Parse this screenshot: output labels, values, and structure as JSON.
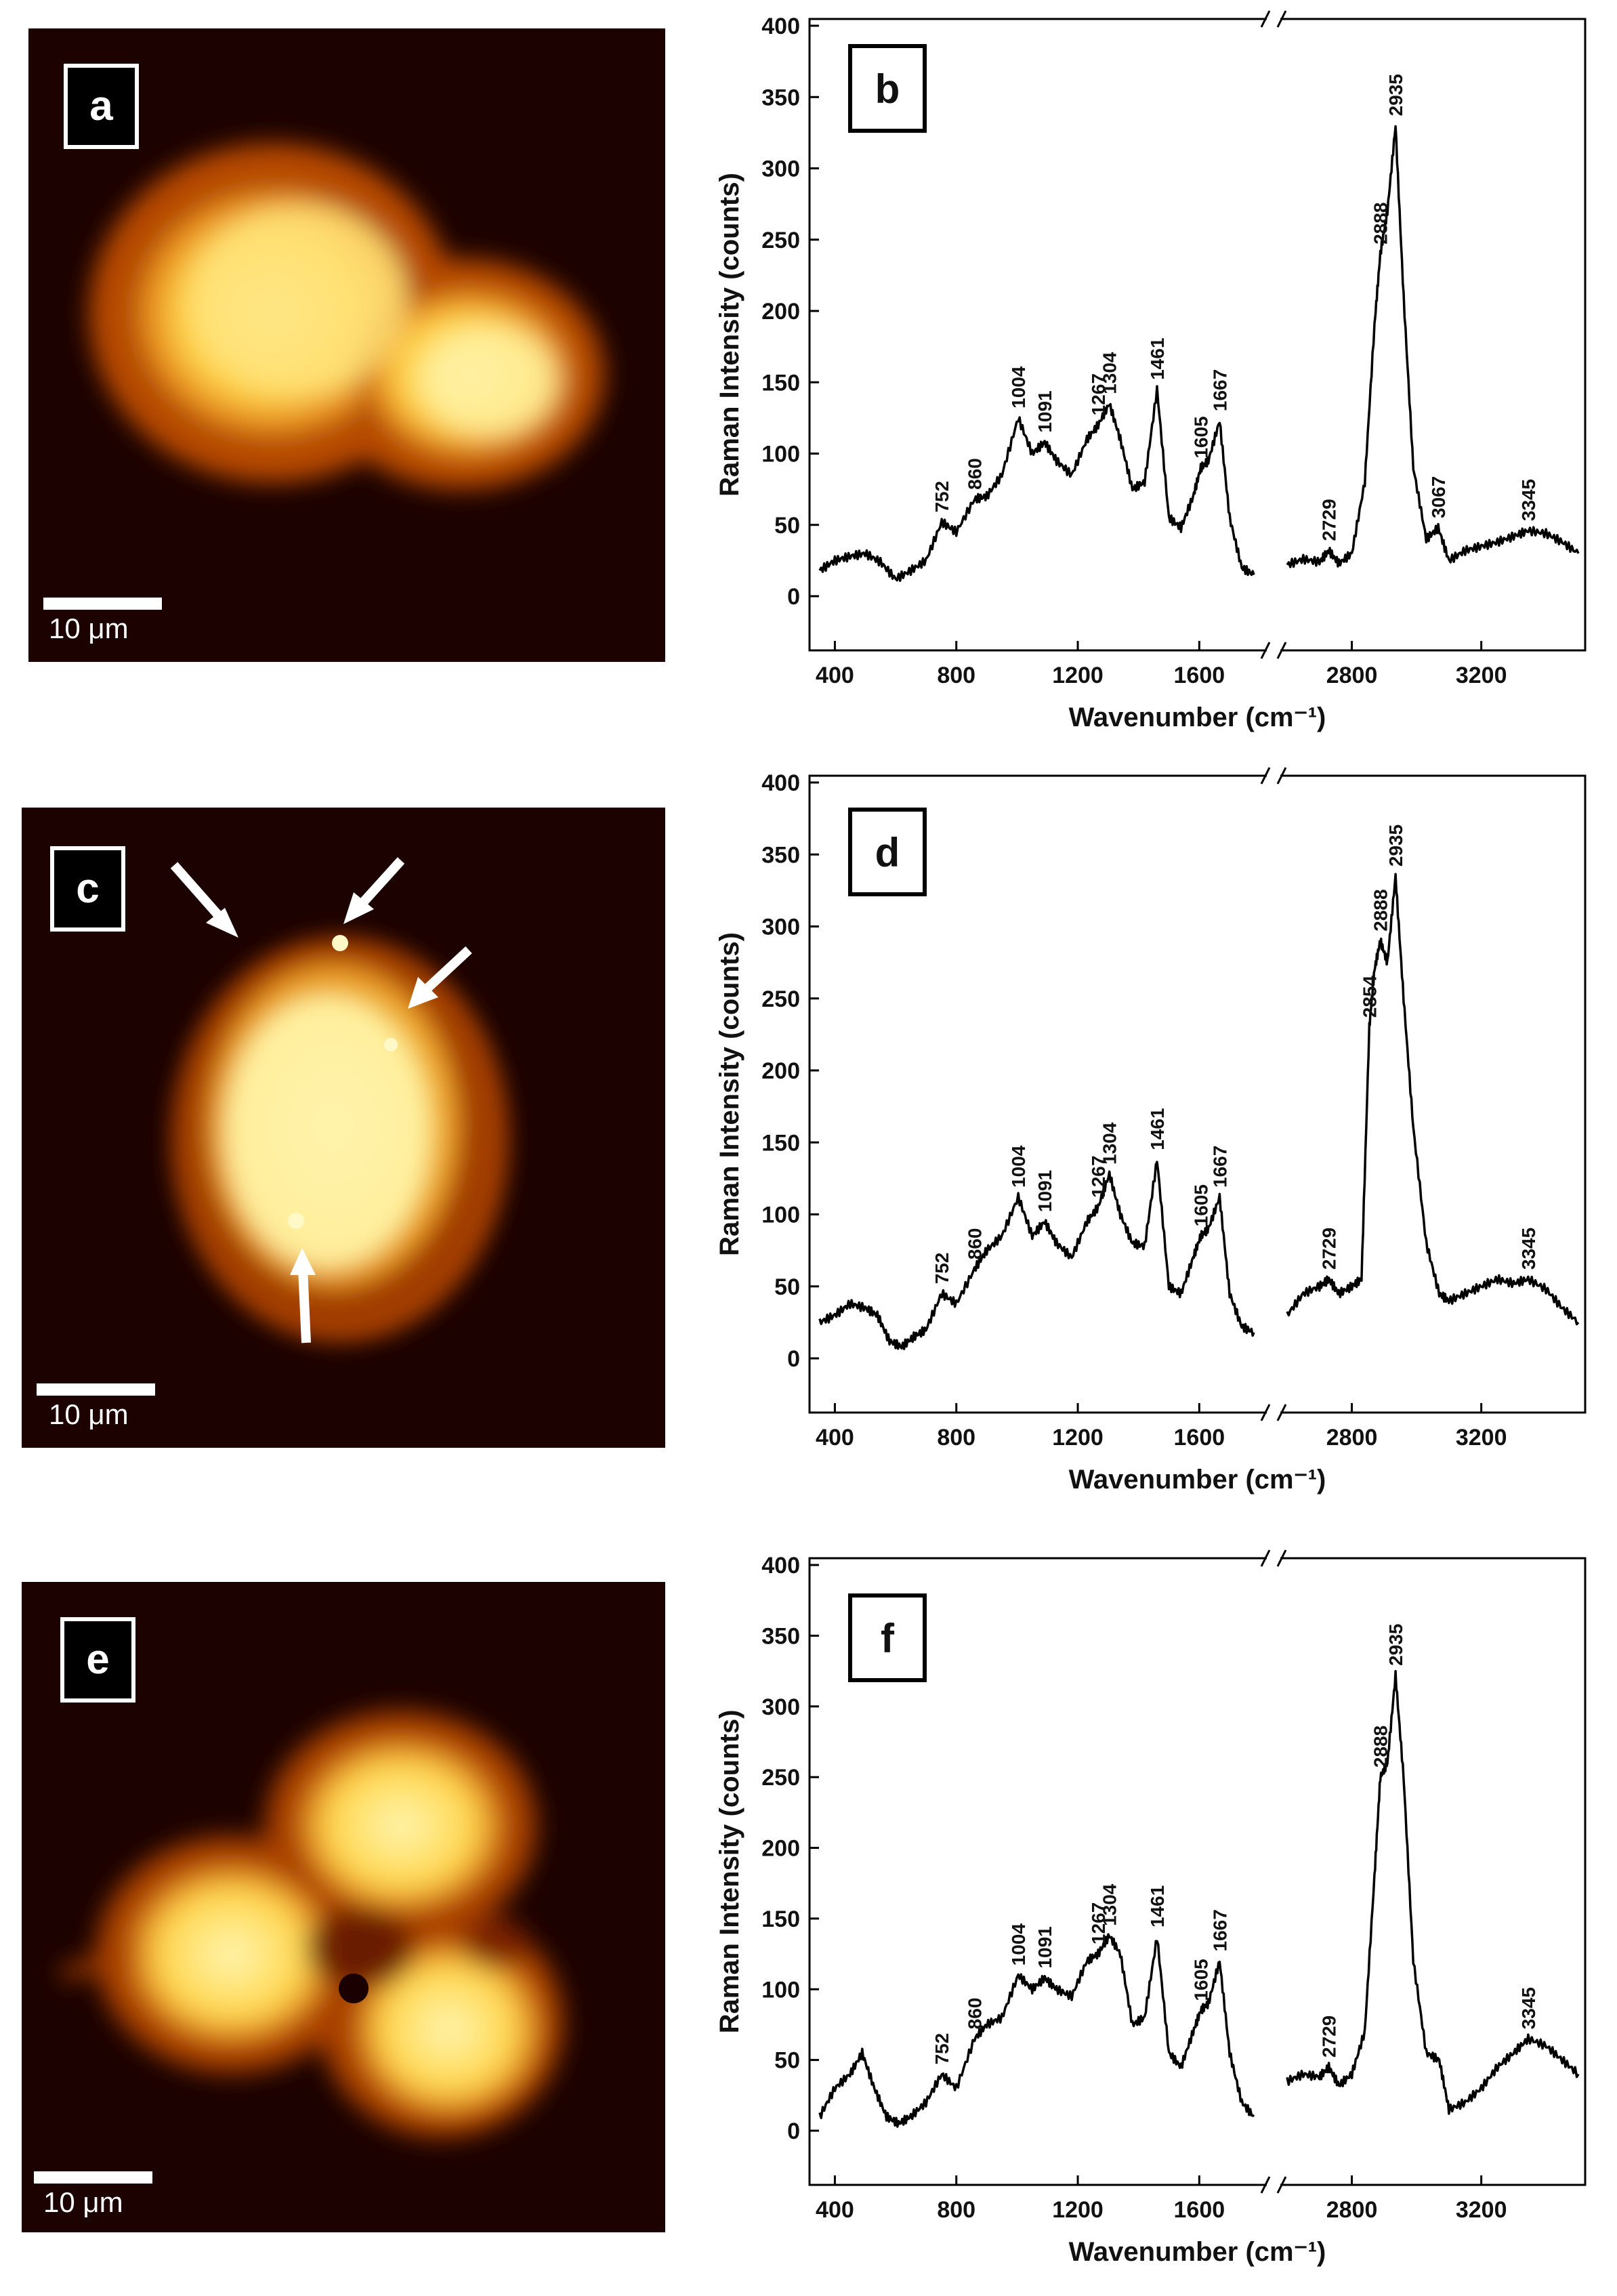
{
  "image_panels": [
    {
      "label": "a",
      "scalebar": "10 μm"
    },
    {
      "label": "c",
      "scalebar": "10 μm"
    },
    {
      "label": "e",
      "scalebar": "10 μm"
    }
  ],
  "colors": {
    "line": "#000000",
    "hot_dark": "#1a0000",
    "hot_mid": "#c45a00",
    "hot_bright": "#ffec90"
  },
  "chart_data": [
    {
      "type": "line",
      "label": "b",
      "xlabel": "Wavenumber (cm⁻¹)",
      "ylabel": "Raman Intensity (counts)",
      "ylim": [
        0,
        400
      ],
      "yticks": [
        0,
        50,
        100,
        150,
        200,
        250,
        300,
        350,
        400
      ],
      "xlim_low": [
        350,
        1800
      ],
      "xlim_high": [
        2600,
        3500
      ],
      "xticks_low": [
        400,
        800,
        1200,
        1600
      ],
      "xticks_high": [
        2800,
        3200
      ],
      "x_low": [
        350,
        400,
        450,
        500,
        550,
        600,
        650,
        700,
        752,
        800,
        860,
        900,
        950,
        1004,
        1050,
        1091,
        1130,
        1180,
        1230,
        1267,
        1304,
        1340,
        1380,
        1420,
        1461,
        1500,
        1540,
        1580,
        1605,
        1630,
        1667,
        1700,
        1740,
        1780
      ],
      "y_low": [
        18,
        25,
        28,
        30,
        24,
        12,
        18,
        25,
        52,
        45,
        68,
        70,
        85,
        125,
        100,
        108,
        95,
        85,
        110,
        120,
        135,
        110,
        75,
        80,
        145,
        55,
        48,
        70,
        90,
        95,
        123,
        55,
        20,
        15
      ],
      "x_high": [
        2600,
        2650,
        2700,
        2729,
        2760,
        2800,
        2840,
        2870,
        2888,
        2910,
        2935,
        2960,
        2990,
        3030,
        3067,
        3100,
        3150,
        3200,
        3250,
        3300,
        3345,
        3400,
        3450,
        3500
      ],
      "y_high": [
        22,
        26,
        24,
        32,
        23,
        30,
        80,
        190,
        240,
        270,
        330,
        210,
        90,
        40,
        48,
        25,
        32,
        35,
        38,
        42,
        46,
        44,
        38,
        30
      ],
      "peaks_low": [
        752,
        860,
        1004,
        1091,
        1267,
        1304,
        1461,
        1605,
        1667
      ],
      "peaks_high": [
        2729,
        2888,
        2935,
        3067,
        3345
      ]
    },
    {
      "type": "line",
      "label": "d",
      "xlabel": "Wavenumber (cm⁻¹)",
      "ylabel": "Raman Intensity (counts)",
      "ylim": [
        0,
        400
      ],
      "yticks": [
        0,
        50,
        100,
        150,
        200,
        250,
        300,
        350,
        400
      ],
      "xlim_low": [
        350,
        1800
      ],
      "xlim_high": [
        2600,
        3500
      ],
      "xticks_low": [
        400,
        800,
        1200,
        1600
      ],
      "xticks_high": [
        2800,
        3200
      ],
      "x_low": [
        350,
        400,
        450,
        500,
        540,
        580,
        620,
        660,
        700,
        752,
        800,
        860,
        900,
        950,
        1004,
        1050,
        1091,
        1130,
        1180,
        1230,
        1267,
        1304,
        1340,
        1380,
        1420,
        1461,
        1500,
        1540,
        1580,
        1605,
        1630,
        1667,
        1700,
        1740,
        1780
      ],
      "y_low": [
        25,
        30,
        38,
        35,
        30,
        12,
        8,
        15,
        20,
        45,
        38,
        62,
        75,
        85,
        112,
        85,
        95,
        80,
        70,
        95,
        105,
        128,
        100,
        80,
        78,
        138,
        50,
        45,
        70,
        85,
        90,
        112,
        45,
        22,
        18
      ],
      "x_high": [
        2600,
        2650,
        2700,
        2729,
        2760,
        2800,
        2830,
        2854,
        2870,
        2888,
        2910,
        2935,
        2960,
        2990,
        3030,
        3070,
        3100,
        3150,
        3200,
        3250,
        3300,
        3345,
        3400,
        3450,
        3500
      ],
      "y_high": [
        30,
        45,
        50,
        55,
        45,
        50,
        55,
        230,
        270,
        290,
        275,
        335,
        250,
        160,
        80,
        45,
        40,
        45,
        50,
        55,
        52,
        55,
        48,
        35,
        25
      ],
      "peaks_low": [
        752,
        860,
        1004,
        1091,
        1267,
        1304,
        1461,
        1605,
        1667
      ],
      "peaks_high": [
        2729,
        2854,
        2888,
        2935,
        3345
      ]
    },
    {
      "type": "line",
      "label": "f",
      "xlabel": "Wavenumber (cm⁻¹)",
      "ylabel": "Raman Intensity (counts)",
      "ylim": [
        0,
        400
      ],
      "yticks": [
        0,
        50,
        100,
        150,
        200,
        250,
        300,
        350,
        400
      ],
      "xlim_low": [
        350,
        1800
      ],
      "xlim_high": [
        2600,
        3500
      ],
      "xticks_low": [
        400,
        800,
        1200,
        1600
      ],
      "xticks_high": [
        2800,
        3200
      ],
      "x_low": [
        350,
        400,
        450,
        490,
        530,
        570,
        610,
        650,
        700,
        752,
        800,
        860,
        900,
        950,
        1004,
        1050,
        1091,
        1130,
        1180,
        1230,
        1267,
        1304,
        1340,
        1380,
        1420,
        1461,
        1500,
        1540,
        1580,
        1605,
        1630,
        1667,
        1700,
        1740,
        1780
      ],
      "y_low": [
        10,
        30,
        40,
        55,
        30,
        10,
        5,
        10,
        20,
        40,
        30,
        65,
        75,
        80,
        110,
        100,
        108,
        100,
        95,
        120,
        125,
        138,
        125,
        75,
        80,
        137,
        55,
        45,
        70,
        85,
        90,
        120,
        55,
        20,
        10
      ],
      "x_high": [
        2600,
        2650,
        2700,
        2729,
        2760,
        2800,
        2840,
        2870,
        2888,
        2910,
        2935,
        2960,
        2990,
        3030,
        3070,
        3100,
        3150,
        3200,
        3250,
        3300,
        3345,
        3400,
        3450,
        3500
      ],
      "y_high": [
        35,
        40,
        38,
        45,
        32,
        40,
        70,
        180,
        250,
        260,
        322,
        250,
        120,
        55,
        50,
        15,
        20,
        30,
        45,
        55,
        65,
        60,
        50,
        40
      ],
      "peaks_low": [
        752,
        860,
        1004,
        1091,
        1267,
        1304,
        1461,
        1605,
        1667
      ],
      "peaks_high": [
        2729,
        2888,
        2935,
        3345
      ]
    }
  ]
}
